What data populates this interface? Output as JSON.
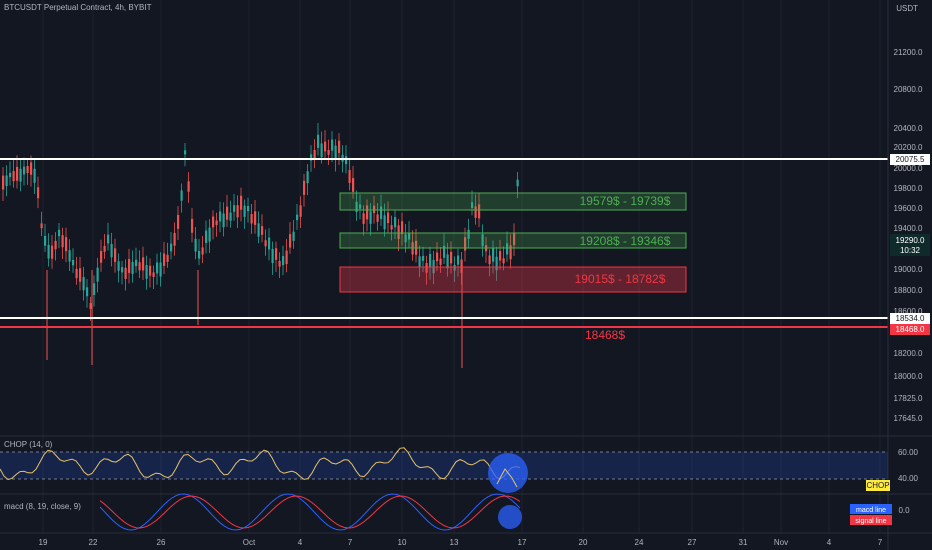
{
  "header": {
    "title": "BTCUSDT Perpetual Contract, 4h, BYBIT",
    "currency": "USDT"
  },
  "price_axis": {
    "ticks": [
      "21200.0",
      "20800.0",
      "20400.0",
      "20200.0",
      "20000.0",
      "19800.0",
      "19600.0",
      "19400.0",
      "19000.0",
      "18800.0",
      "18600.0",
      "18200.0",
      "18000.0",
      "17825.0",
      "17645.0"
    ],
    "last_price": "19290.0",
    "countdown": "10:32",
    "resistance_label": "20075.5",
    "support_label": "18534.0",
    "red_level_label": "18468.0"
  },
  "zones": {
    "upper_green": "19579$ - 19739$",
    "lower_green": "19208$ - 19346$",
    "red": "19015$ - 18782$",
    "red_level": "18468$"
  },
  "chop": {
    "title": "CHOP (14, 0)",
    "levels": [
      "60.00",
      "40.00"
    ],
    "badge": "CHOP"
  },
  "macd": {
    "title": "macd (8, 19, close, 9)",
    "zero": "0.0",
    "legend_macd": "macd line",
    "legend_signal": "signal line"
  },
  "time_axis": [
    "19",
    "22",
    "26",
    "Oct",
    "4",
    "7",
    "10",
    "13",
    "17",
    "20",
    "24",
    "27",
    "31",
    "Nov",
    "4",
    "7"
  ],
  "colors": {
    "bg": "#131722",
    "up": "#26a69a",
    "down": "#ef5350",
    "green_zone": "#4caf50",
    "red_zone": "#f23645",
    "chop_line": "#e8c36a",
    "macd_line": "#2962ff",
    "signal_line": "#f23645"
  }
}
